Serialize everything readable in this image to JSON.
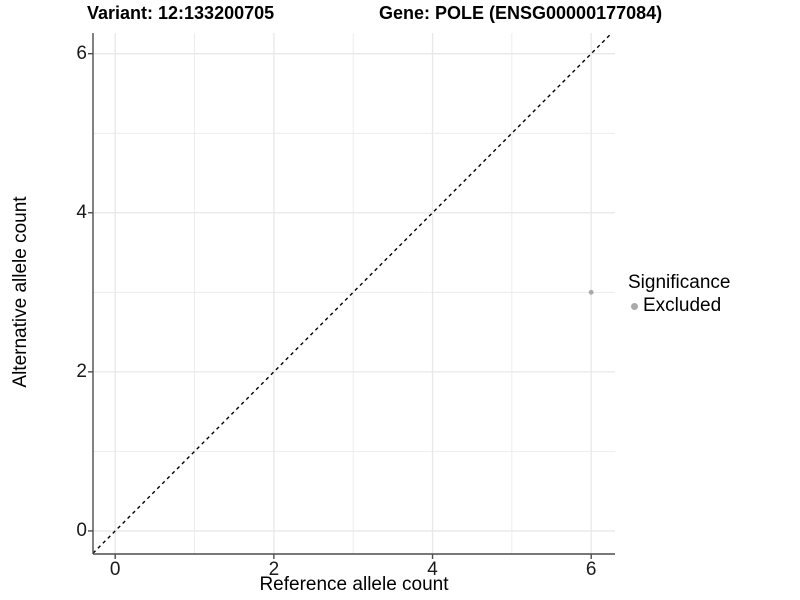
{
  "chart_data": {
    "type": "scatter",
    "title_left": "Variant: 12:133200705",
    "title_right": "Gene: POLE (ENSG00000177084)",
    "xlabel": "Reference allele count",
    "ylabel": "Alternative allele count",
    "xlim": [
      -0.28,
      6.3
    ],
    "ylim": [
      -0.29,
      6.26
    ],
    "xticks": [
      0,
      2,
      4,
      6
    ],
    "yticks": [
      0,
      2,
      4,
      6
    ],
    "xgrid_minor": [
      1,
      3,
      5
    ],
    "ygrid_minor": [
      1,
      3,
      5
    ],
    "grid": "on",
    "series": [
      {
        "name": "Excluded",
        "color": "#aaaaaa",
        "marker": "circle",
        "points": [
          [
            6,
            3
          ]
        ]
      }
    ],
    "reference_line": {
      "kind": "identity",
      "slope": 1,
      "intercept": 0,
      "style": "dashed",
      "color": "#000000"
    },
    "legend": {
      "position": "right",
      "title": "Significance",
      "entries": [
        {
          "label": "Excluded",
          "color": "#aaaaaa",
          "marker": "circle"
        }
      ]
    },
    "colors": {
      "background": "#ffffff",
      "grid_major": "#e8e8e8",
      "grid_minor": "#e8e8e8",
      "axis_line": "#4d4d4d",
      "tick_text": "#1a1a1a",
      "title_text": "#000000",
      "point": "#aaaaaa"
    }
  }
}
